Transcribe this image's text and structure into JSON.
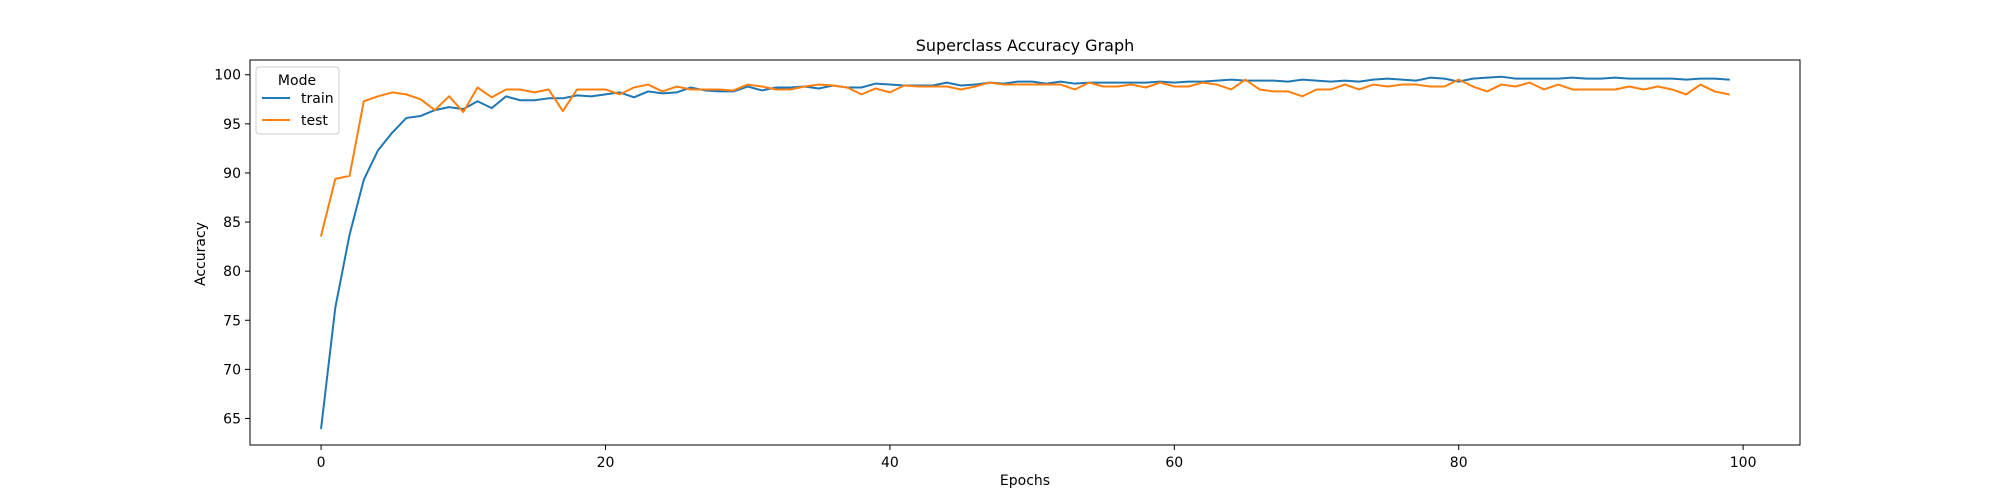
{
  "chart_data": {
    "type": "line",
    "title": "Superclass Accuracy Graph",
    "xlabel": "Epochs",
    "ylabel": "Accuracy",
    "xlim": [
      -5,
      104
    ],
    "ylim": [
      62.3,
      101.5
    ],
    "xticks": [
      0,
      20,
      40,
      60,
      80,
      100
    ],
    "yticks": [
      65,
      70,
      75,
      80,
      85,
      90,
      95,
      100
    ],
    "legend": {
      "title": "Mode",
      "location": "upper left"
    },
    "series": [
      {
        "name": "train",
        "color": "#1f77b4",
        "values": [
          64.0,
          76.3,
          83.7,
          89.3,
          92.3,
          94.1,
          95.6,
          95.8,
          96.4,
          96.7,
          96.5,
          97.3,
          96.6,
          97.8,
          97.4,
          97.4,
          97.6,
          97.6,
          97.9,
          97.8,
          98.0,
          98.2,
          97.7,
          98.3,
          98.1,
          98.2,
          98.7,
          98.4,
          98.3,
          98.3,
          98.8,
          98.4,
          98.7,
          98.7,
          98.8,
          98.6,
          98.9,
          98.7,
          98.7,
          99.1,
          99.0,
          98.9,
          98.9,
          98.9,
          99.2,
          98.9,
          99.0,
          99.2,
          99.1,
          99.3,
          99.3,
          99.1,
          99.3,
          99.1,
          99.2,
          99.2,
          99.2,
          99.2,
          99.2,
          99.3,
          99.2,
          99.3,
          99.3,
          99.4,
          99.5,
          99.4,
          99.4,
          99.4,
          99.3,
          99.5,
          99.4,
          99.3,
          99.4,
          99.3,
          99.5,
          99.6,
          99.5,
          99.4,
          99.7,
          99.6,
          99.3,
          99.6,
          99.7,
          99.8,
          99.6,
          99.6,
          99.6,
          99.6,
          99.7,
          99.6,
          99.6,
          99.7,
          99.6,
          99.6,
          99.6,
          99.6,
          99.5,
          99.6,
          99.6,
          99.5
        ]
      },
      {
        "name": "test",
        "color": "#ff7f0e",
        "values": [
          83.6,
          89.4,
          89.7,
          97.3,
          97.8,
          98.2,
          98.0,
          97.5,
          96.4,
          97.8,
          96.2,
          98.7,
          97.7,
          98.5,
          98.5,
          98.2,
          98.5,
          96.3,
          98.5,
          98.5,
          98.5,
          98.0,
          98.7,
          99.0,
          98.3,
          98.8,
          98.5,
          98.5,
          98.5,
          98.4,
          99.0,
          98.8,
          98.5,
          98.5,
          98.8,
          99.0,
          98.9,
          98.7,
          98.0,
          98.6,
          98.2,
          98.9,
          98.8,
          98.8,
          98.8,
          98.5,
          98.8,
          99.2,
          99.0,
          99.0,
          99.0,
          99.0,
          99.0,
          98.5,
          99.2,
          98.8,
          98.8,
          99.0,
          98.7,
          99.2,
          98.8,
          98.8,
          99.2,
          99.0,
          98.5,
          99.5,
          98.5,
          98.3,
          98.3,
          97.8,
          98.5,
          98.5,
          99.0,
          98.5,
          99.0,
          98.8,
          99.0,
          99.0,
          98.8,
          98.8,
          99.5,
          98.8,
          98.3,
          99.0,
          98.8,
          99.2,
          98.5,
          99.0,
          98.5,
          98.5,
          98.5,
          98.5,
          98.8,
          98.5,
          98.8,
          98.5,
          98.0,
          99.0,
          98.3,
          98.0
        ]
      }
    ]
  }
}
